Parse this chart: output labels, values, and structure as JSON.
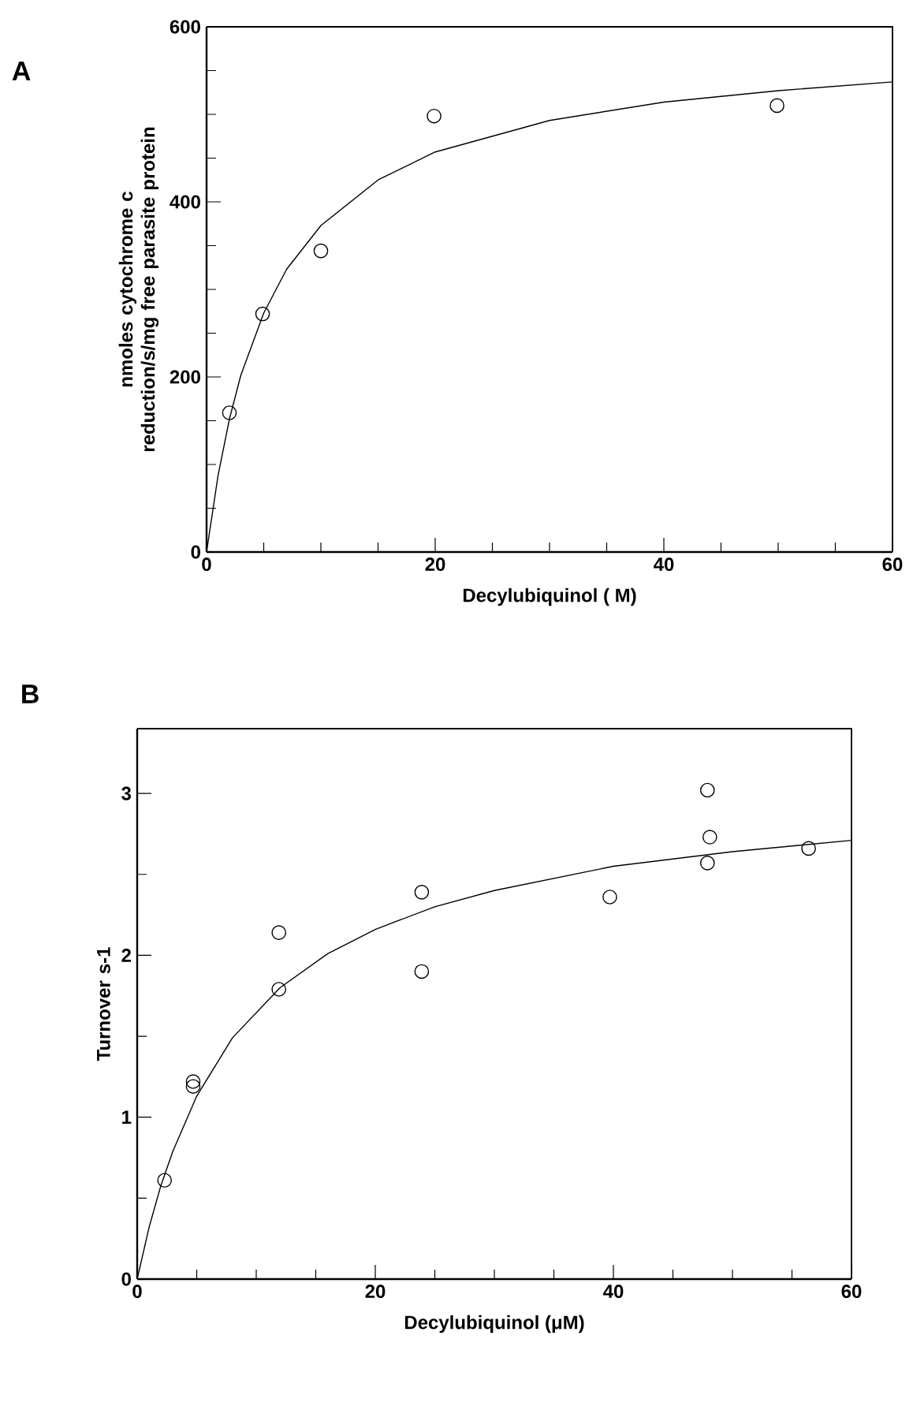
{
  "chart_data": [
    {
      "type": "scatter",
      "annotations": [
        "A"
      ],
      "xlabel": "Decylubiquinol (  M)",
      "ylabel": "nmoles cytochrome c reduction/s/mg free parasite protein",
      "xlim": [
        0,
        60
      ],
      "ylim": [
        0,
        600
      ],
      "xticks": [
        0,
        {
          "value": 5,
          "label": null
        },
        {
          "value": 10,
          "label": null
        },
        {
          "value": 15,
          "label": null
        },
        20,
        {
          "value": 25,
          "label": null
        },
        {
          "value": 30,
          "label": null
        },
        {
          "value": 35,
          "label": null
        },
        40,
        {
          "value": 45,
          "label": null
        },
        {
          "value": 50,
          "label": null
        },
        {
          "value": 55,
          "label": null
        },
        60
      ],
      "yticks": [
        0,
        {
          "value": 50,
          "label": null
        },
        {
          "value": 100,
          "label": null
        },
        {
          "value": 150,
          "label": null
        },
        200,
        {
          "value": 250,
          "label": null
        },
        {
          "value": 300,
          "label": null
        },
        {
          "value": 350,
          "label": null
        },
        400,
        {
          "value": 450,
          "label": null
        },
        {
          "value": 500,
          "label": null
        },
        {
          "value": 550,
          "label": null
        },
        600
      ],
      "series": [
        {
          "marker": "circle",
          "color": "#000000",
          "x": [
            2,
            4.9,
            10,
            19.9,
            49.9
          ],
          "values": [
            159,
            272,
            344,
            498,
            510
          ]
        },
        {
          "type": "line",
          "marker": "none",
          "line_style": "solid",
          "color": "#000000",
          "x": [
            0,
            1,
            2,
            3,
            5,
            7,
            10,
            15,
            20,
            30,
            40,
            50,
            60
          ],
          "values": [
            0,
            87,
            152,
            202,
            273,
            323,
            373,
            425,
            457,
            493,
            514,
            527,
            537
          ]
        }
      ]
    },
    {
      "type": "scatter",
      "annotations": [
        "B"
      ],
      "xlabel": "Decylubiquinol (μM)",
      "ylabel": "Turnover s-1",
      "xlim": [
        0,
        60
      ],
      "ylim": [
        0,
        3.4
      ],
      "xticks": [
        0,
        {
          "value": 5,
          "label": null
        },
        {
          "value": 10,
          "label": null
        },
        {
          "value": 15,
          "label": null
        },
        20,
        {
          "value": 25,
          "label": null
        },
        {
          "value": 30,
          "label": null
        },
        {
          "value": 35,
          "label": null
        },
        40,
        {
          "value": 45,
          "label": null
        },
        {
          "value": 50,
          "label": null
        },
        {
          "value": 55,
          "label": null
        },
        60
      ],
      "yticks": [
        0,
        {
          "value": 0.5,
          "label": null
        },
        1,
        {
          "value": 1.5,
          "label": null
        },
        2,
        {
          "value": 2.5,
          "label": null
        },
        3
      ],
      "series": [
        {
          "marker": "circle",
          "color": "#000000",
          "x": [
            2.3,
            4.7,
            4.7,
            11.9,
            11.9,
            23.9,
            23.9,
            39.7,
            47.9,
            48.1,
            47.9,
            56.4
          ],
          "values": [
            0.61,
            1.19,
            1.22,
            2.14,
            1.79,
            2.39,
            1.9,
            2.36,
            3.02,
            2.73,
            2.57,
            2.66
          ]
        },
        {
          "type": "line",
          "marker": "none",
          "line_style": "solid",
          "color": "#000000",
          "x": [
            0,
            1,
            2,
            3,
            5,
            8,
            12,
            16,
            20,
            25,
            30,
            40,
            50,
            60
          ],
          "values": [
            0,
            0.32,
            0.58,
            0.79,
            1.13,
            1.49,
            1.8,
            2.01,
            2.16,
            2.3,
            2.4,
            2.55,
            2.64,
            2.71
          ]
        }
      ]
    }
  ]
}
